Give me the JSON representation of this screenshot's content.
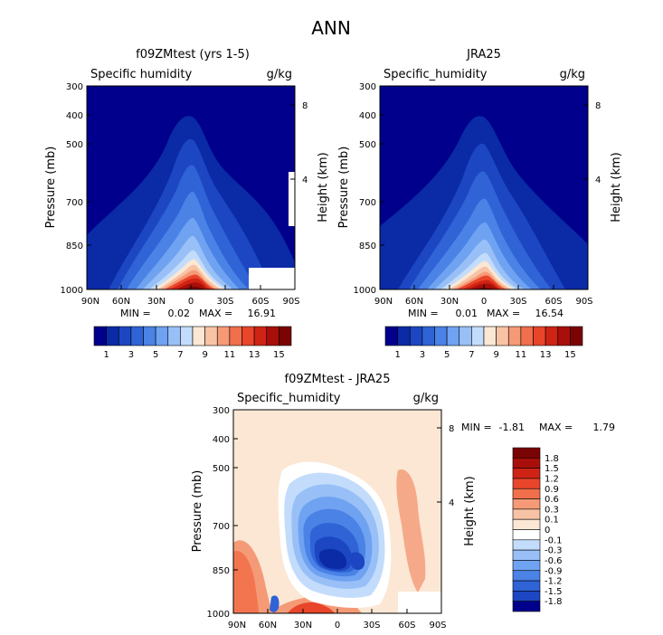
{
  "page_title": "ANN",
  "chart_data": [
    {
      "type": "contour",
      "title": "f09ZMtest (yrs 1-5)",
      "variable": "Specific humidity",
      "units": "g/kg",
      "ylabel": "Pressure (mb)",
      "ylabel_right": "Height (km)",
      "pressure_ticks": [
        "300",
        "400",
        "500",
        "700",
        "850",
        "1000"
      ],
      "height_ticks": [
        "8",
        "4"
      ],
      "lat_ticks": [
        "90N",
        "60N",
        "30N",
        "0",
        "30S",
        "60S",
        "90S"
      ],
      "min_label": "MIN =",
      "min_value": "0.02",
      "max_label": "MAX =",
      "max_value": "16.91",
      "peak": {
        "lat": -5,
        "pressure": 1000,
        "value": 16.91
      },
      "colorbar": {
        "labels": [
          "1",
          "3",
          "5",
          "7",
          "9",
          "11",
          "13",
          "15"
        ],
        "colors": [
          "#00008c",
          "#0a2aa6",
          "#1c46c2",
          "#2f63d6",
          "#4a82e6",
          "#6fa2f1",
          "#98c0f7",
          "#c3dcfb",
          "#fbe7d4",
          "#f8c2a4",
          "#f59a76",
          "#f16f4a",
          "#e9452a",
          "#cf2415",
          "#a90f0a",
          "#7a0303"
        ]
      }
    },
    {
      "type": "contour",
      "title": "JRA25",
      "variable": "Specific_humidity",
      "units": "g/kg",
      "ylabel": "Pressure (mb)",
      "ylabel_right": "Height (km)",
      "pressure_ticks": [
        "300",
        "400",
        "500",
        "700",
        "850",
        "1000"
      ],
      "height_ticks": [
        "8",
        "4"
      ],
      "lat_ticks": [
        "90N",
        "60N",
        "30N",
        "0",
        "30S",
        "60S",
        "90S"
      ],
      "min_label": "MIN =",
      "min_value": "0.01",
      "max_label": "MAX =",
      "max_value": "16.54",
      "peak": {
        "lat": -3,
        "pressure": 1000,
        "value": 16.54
      },
      "colorbar": {
        "labels": [
          "1",
          "3",
          "5",
          "7",
          "9",
          "11",
          "13",
          "15"
        ],
        "colors": [
          "#00008c",
          "#0a2aa6",
          "#1c46c2",
          "#2f63d6",
          "#4a82e6",
          "#6fa2f1",
          "#98c0f7",
          "#c3dcfb",
          "#fbe7d4",
          "#f8c2a4",
          "#f59a76",
          "#f16f4a",
          "#e9452a",
          "#cf2415",
          "#a90f0a",
          "#7a0303"
        ]
      }
    },
    {
      "type": "contour",
      "title": "f09ZMtest - JRA25",
      "variable": "Specific_humidity",
      "units": "g/kg",
      "ylabel": "Pressure (mb)",
      "ylabel_right": "Height (km)",
      "pressure_ticks": [
        "300",
        "400",
        "500",
        "700",
        "850",
        "1000"
      ],
      "height_ticks": [
        "8",
        "4"
      ],
      "lat_ticks": [
        "90N",
        "60N",
        "30N",
        "0",
        "30S",
        "60S",
        "90S"
      ],
      "min_label": "MIN =",
      "min_value": "-1.81",
      "max_label": "MAX =",
      "max_value": "1.79",
      "colorbar": {
        "labels": [
          "1.8",
          "1.5",
          "1.2",
          "0.9",
          "0.6",
          "0.3",
          "0.1",
          "0",
          "-0.1",
          "-0.3",
          "-0.6",
          "-0.9",
          "-1.2",
          "-1.5",
          "-1.8"
        ],
        "colors": [
          "#7a0303",
          "#a90f0a",
          "#cf2415",
          "#e9452a",
          "#f16f4a",
          "#f59a76",
          "#f8c2a4",
          "#fbe7d4",
          "#ffffff",
          "#c3dcfb",
          "#98c0f7",
          "#6fa2f1",
          "#4a82e6",
          "#2f63d6",
          "#1c46c2",
          "#00008c"
        ]
      }
    }
  ]
}
